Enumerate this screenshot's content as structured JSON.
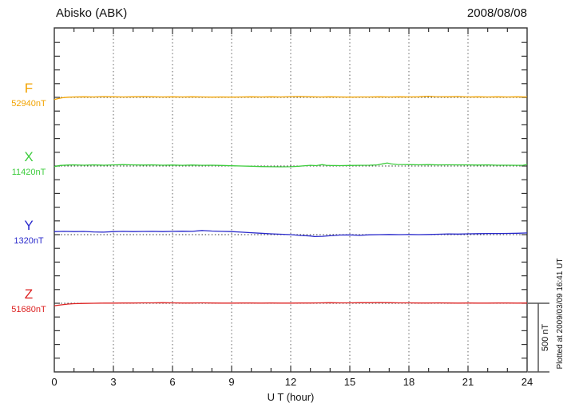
{
  "chart_data": {
    "type": "line",
    "title": "Abisko (ABK)",
    "date": "2008/08/08",
    "xlabel": "U T (hour)",
    "plotted_at": "Plotted at 2009/03/09 16:41 UT",
    "x_range": [
      0,
      24
    ],
    "x_ticks": [
      0,
      3,
      6,
      9,
      12,
      15,
      18,
      21,
      24
    ],
    "grid": "dotted vertical lines every 3 hours; dotted horizontal baseline per trace",
    "y_minor_tick_nT": 100,
    "scale_bar": {
      "label": "500 nT",
      "nT": 500
    },
    "series": [
      {
        "name": "F",
        "baseline_nT": 52940,
        "baseline_label": "52940nT",
        "color": "#f2a300",
        "points_hour_offset_nT": [
          [
            0,
            -16
          ],
          [
            0.2,
            -9
          ],
          [
            0.4,
            -3
          ],
          [
            0.7,
            1
          ],
          [
            1,
            3
          ],
          [
            1.5,
            4
          ],
          [
            2,
            3
          ],
          [
            2.5,
            5
          ],
          [
            3,
            4
          ],
          [
            3.5,
            3
          ],
          [
            4,
            4
          ],
          [
            4.5,
            5
          ],
          [
            5,
            4
          ],
          [
            5.5,
            3
          ],
          [
            6,
            4
          ],
          [
            6.5,
            3
          ],
          [
            7,
            4
          ],
          [
            7.5,
            3
          ],
          [
            8,
            2
          ],
          [
            8.5,
            3
          ],
          [
            9,
            2
          ],
          [
            9.5,
            3
          ],
          [
            10,
            4
          ],
          [
            10.5,
            3
          ],
          [
            11,
            4
          ],
          [
            11.5,
            3
          ],
          [
            12,
            5
          ],
          [
            12.5,
            6
          ],
          [
            13,
            4
          ],
          [
            13.5,
            3
          ],
          [
            14,
            4
          ],
          [
            14.5,
            3
          ],
          [
            15,
            2
          ],
          [
            15.5,
            3
          ],
          [
            16,
            3
          ],
          [
            16.5,
            4
          ],
          [
            17,
            3
          ],
          [
            17.5,
            4
          ],
          [
            18,
            3
          ],
          [
            18.5,
            4
          ],
          [
            19,
            8
          ],
          [
            19.3,
            5
          ],
          [
            20,
            4
          ],
          [
            20.5,
            6
          ],
          [
            21,
            3
          ],
          [
            21.5,
            4
          ],
          [
            22,
            3
          ],
          [
            22.5,
            4
          ],
          [
            23,
            3
          ],
          [
            23.5,
            4
          ],
          [
            24,
            3
          ]
        ]
      },
      {
        "name": "X",
        "baseline_nT": 11420,
        "baseline_label": "11420nT",
        "color": "#3ecc3e",
        "points_hour_offset_nT": [
          [
            0,
            -4
          ],
          [
            0.3,
            4
          ],
          [
            0.7,
            7
          ],
          [
            1,
            8
          ],
          [
            1.5,
            6
          ],
          [
            2,
            8
          ],
          [
            2.5,
            6
          ],
          [
            3,
            8
          ],
          [
            3.5,
            10
          ],
          [
            4,
            8
          ],
          [
            4.5,
            7
          ],
          [
            5,
            8
          ],
          [
            5.5,
            6
          ],
          [
            6,
            7
          ],
          [
            6.5,
            5
          ],
          [
            7,
            7
          ],
          [
            7.5,
            5
          ],
          [
            8,
            6
          ],
          [
            8.5,
            4
          ],
          [
            9,
            2
          ],
          [
            9.5,
            0
          ],
          [
            10,
            -2
          ],
          [
            10.5,
            -4
          ],
          [
            11,
            -5
          ],
          [
            11.5,
            -6
          ],
          [
            12,
            -5
          ],
          [
            12.4,
            -2
          ],
          [
            12.8,
            3
          ],
          [
            13,
            5
          ],
          [
            13.3,
            3
          ],
          [
            13.6,
            10
          ],
          [
            13.8,
            5
          ],
          [
            14,
            4
          ],
          [
            14.5,
            3
          ],
          [
            15,
            4
          ],
          [
            15.5,
            5
          ],
          [
            16,
            6
          ],
          [
            16.4,
            8
          ],
          [
            16.7,
            16
          ],
          [
            16.9,
            22
          ],
          [
            17.1,
            15
          ],
          [
            17.4,
            11
          ],
          [
            18,
            10
          ],
          [
            18.5,
            9
          ],
          [
            19,
            10
          ],
          [
            19.5,
            8
          ],
          [
            20,
            9
          ],
          [
            20.5,
            8
          ],
          [
            21,
            8
          ],
          [
            21.5,
            7
          ],
          [
            22,
            8
          ],
          [
            22.5,
            6
          ],
          [
            23,
            6
          ],
          [
            23.5,
            5
          ],
          [
            23.8,
            6
          ],
          [
            24,
            11
          ]
        ]
      },
      {
        "name": "Y",
        "baseline_nT": 1320,
        "baseline_label": "1320nT",
        "color": "#2a2acc",
        "points_hour_offset_nT": [
          [
            0,
            22
          ],
          [
            0.5,
            24
          ],
          [
            1,
            22
          ],
          [
            1.5,
            23
          ],
          [
            2,
            20
          ],
          [
            2.5,
            18
          ],
          [
            3,
            22
          ],
          [
            3.5,
            24
          ],
          [
            4,
            22
          ],
          [
            4.5,
            23
          ],
          [
            5,
            24
          ],
          [
            5.5,
            22
          ],
          [
            6,
            24
          ],
          [
            6.5,
            25
          ],
          [
            7,
            24
          ],
          [
            7.5,
            30
          ],
          [
            8,
            26
          ],
          [
            8.5,
            24
          ],
          [
            9,
            22
          ],
          [
            9.5,
            18
          ],
          [
            10,
            14
          ],
          [
            10.5,
            10
          ],
          [
            11,
            6
          ],
          [
            11.5,
            3
          ],
          [
            12,
            0
          ],
          [
            12.5,
            -6
          ],
          [
            13,
            -10
          ],
          [
            13.2,
            -14
          ],
          [
            13.6,
            -12
          ],
          [
            14,
            -8
          ],
          [
            14.5,
            -3
          ],
          [
            15,
            -2
          ],
          [
            15.5,
            -5
          ],
          [
            16,
            -1
          ],
          [
            16.5,
            0
          ],
          [
            17,
            1
          ],
          [
            17.5,
            0
          ],
          [
            18,
            1
          ],
          [
            18.5,
            0
          ],
          [
            19,
            1
          ],
          [
            19.5,
            3
          ],
          [
            20,
            5
          ],
          [
            20.5,
            4
          ],
          [
            21,
            6
          ],
          [
            21.5,
            7
          ],
          [
            22,
            8
          ],
          [
            22.5,
            8
          ],
          [
            23,
            9
          ],
          [
            23.5,
            10
          ],
          [
            24,
            12
          ]
        ]
      },
      {
        "name": "Z",
        "baseline_nT": 51680,
        "baseline_label": "51680nT",
        "color": "#dd2222",
        "points_hour_offset_nT": [
          [
            0,
            -18
          ],
          [
            0.3,
            -12
          ],
          [
            0.7,
            -6
          ],
          [
            1,
            -3
          ],
          [
            1.5,
            -1
          ],
          [
            2,
            0
          ],
          [
            2.5,
            1
          ],
          [
            3,
            1
          ],
          [
            3.5,
            2
          ],
          [
            4,
            2
          ],
          [
            4.5,
            3
          ],
          [
            5,
            3
          ],
          [
            5.5,
            4
          ],
          [
            6,
            3
          ],
          [
            6.5,
            2
          ],
          [
            7,
            2
          ],
          [
            7.5,
            3
          ],
          [
            8,
            2
          ],
          [
            8.5,
            1
          ],
          [
            9,
            1
          ],
          [
            9.5,
            2
          ],
          [
            10,
            2
          ],
          [
            10.5,
            1
          ],
          [
            11,
            2
          ],
          [
            11.5,
            1
          ],
          [
            12,
            1
          ],
          [
            12.5,
            2
          ],
          [
            13,
            2
          ],
          [
            13.5,
            3
          ],
          [
            14,
            4
          ],
          [
            14.5,
            3
          ],
          [
            15,
            3
          ],
          [
            15.5,
            4
          ],
          [
            16,
            4
          ],
          [
            16.5,
            5
          ],
          [
            17,
            4
          ],
          [
            17.5,
            3
          ],
          [
            18,
            3
          ],
          [
            18.5,
            2
          ],
          [
            19,
            2
          ],
          [
            19.5,
            3
          ],
          [
            20,
            2
          ],
          [
            20.5,
            1
          ],
          [
            21,
            2
          ],
          [
            21.5,
            1
          ],
          [
            22,
            1
          ],
          [
            22.5,
            2
          ],
          [
            23,
            2
          ],
          [
            23.5,
            1
          ],
          [
            24,
            2
          ]
        ]
      }
    ]
  }
}
